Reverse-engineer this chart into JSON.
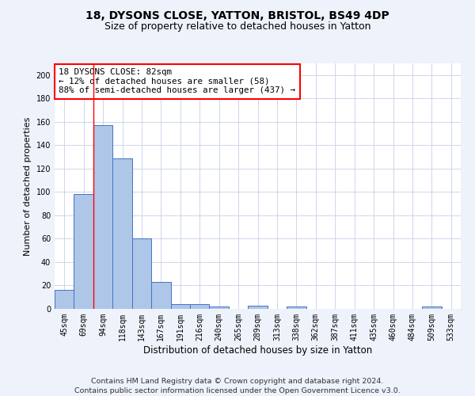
{
  "title1": "18, DYSONS CLOSE, YATTON, BRISTOL, BS49 4DP",
  "title2": "Size of property relative to detached houses in Yatton",
  "xlabel": "Distribution of detached houses by size in Yatton",
  "ylabel": "Number of detached properties",
  "categories": [
    "45sqm",
    "69sqm",
    "94sqm",
    "118sqm",
    "143sqm",
    "167sqm",
    "191sqm",
    "216sqm",
    "240sqm",
    "265sqm",
    "289sqm",
    "313sqm",
    "338sqm",
    "362sqm",
    "387sqm",
    "411sqm",
    "435sqm",
    "460sqm",
    "484sqm",
    "509sqm",
    "533sqm"
  ],
  "values": [
    16,
    98,
    157,
    129,
    60,
    23,
    4,
    4,
    2,
    0,
    3,
    0,
    2,
    0,
    0,
    0,
    0,
    0,
    0,
    2,
    0
  ],
  "bar_color": "#aec6e8",
  "bar_edge_color": "#4472c4",
  "property_line_x": 1.5,
  "annotation_text": "18 DYSONS CLOSE: 82sqm\n← 12% of detached houses are smaller (58)\n88% of semi-detached houses are larger (437) →",
  "annotation_box_color": "white",
  "annotation_box_edge_color": "red",
  "vline_color": "red",
  "ylim": [
    0,
    210
  ],
  "yticks": [
    0,
    20,
    40,
    60,
    80,
    100,
    120,
    140,
    160,
    180,
    200
  ],
  "background_color": "#eef2fb",
  "plot_bg_color": "white",
  "footer1": "Contains HM Land Registry data © Crown copyright and database right 2024.",
  "footer2": "Contains public sector information licensed under the Open Government Licence v3.0.",
  "title1_fontsize": 10,
  "title2_fontsize": 9,
  "xlabel_fontsize": 8.5,
  "ylabel_fontsize": 8,
  "annotation_fontsize": 7.8,
  "footer_fontsize": 6.8,
  "tick_fontsize": 7
}
